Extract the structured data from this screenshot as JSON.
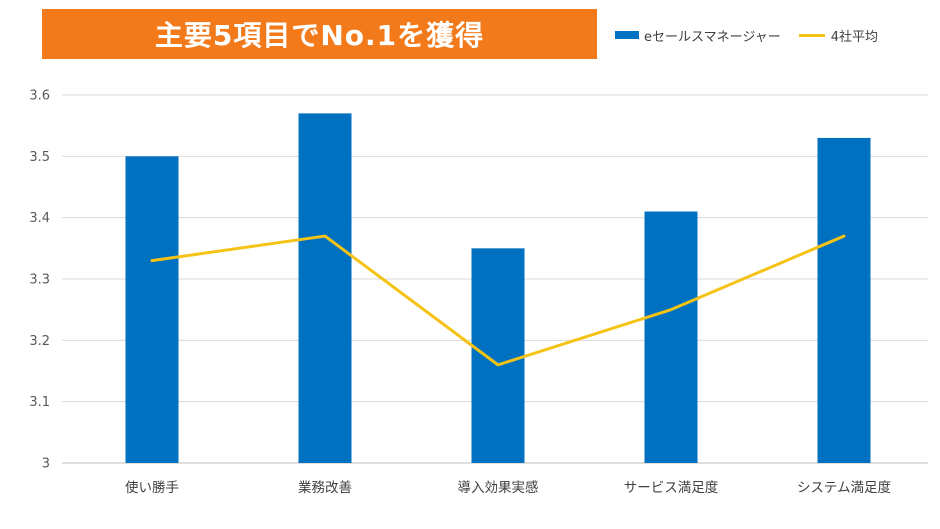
{
  "banner": {
    "title": "主要5項目でNo.1を獲得",
    "background_color": "#f27a1a"
  },
  "legend": {
    "items": [
      {
        "label": "eセールスマネージャー",
        "color": "#0070c0",
        "kind": "bar"
      },
      {
        "label": "4社平均",
        "color": "#f5c316",
        "kind": "line"
      }
    ]
  },
  "chart_data": {
    "type": "bar",
    "title": "主要5項目でNo.1を獲得",
    "xlabel": "",
    "ylabel": "",
    "ylim": [
      3,
      3.6
    ],
    "yticks": [
      "3",
      "3.1",
      "3.2",
      "3.3",
      "3.4",
      "3.5",
      "3.6"
    ],
    "grid": true,
    "legend_position": "top-right",
    "categories": [
      "使い勝手",
      "業務改善",
      "導入効果実感",
      "サービス満足度",
      "システム満足度"
    ],
    "series": [
      {
        "name": "eセールスマネージャー",
        "type": "bar",
        "color": "#0070c0",
        "values": [
          3.5,
          3.57,
          3.35,
          3.41,
          3.53
        ]
      },
      {
        "name": "4社平均",
        "type": "line",
        "color": "#f5c316",
        "values": [
          3.33,
          3.37,
          3.16,
          3.25,
          3.37
        ]
      }
    ]
  }
}
